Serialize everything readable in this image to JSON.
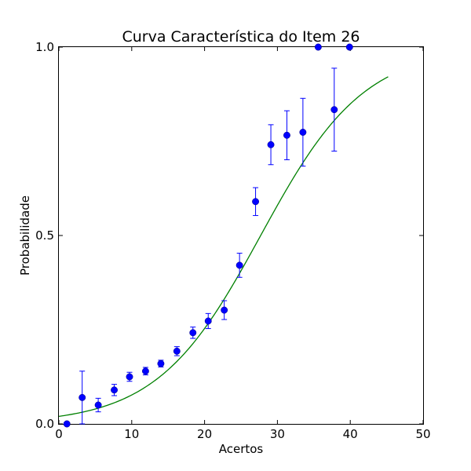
{
  "chart_data": {
    "type": "scatter",
    "title": "Curva Característica do Item 26",
    "xlabel": "Acertos",
    "ylabel": "Probabilidade",
    "xlim": [
      0,
      50
    ],
    "ylim": [
      0.0,
      1.0
    ],
    "x_ticks": [
      "0",
      "10",
      "20",
      "30",
      "40",
      "50"
    ],
    "y_ticks": [
      "0.0",
      "0.5",
      "1.0"
    ],
    "grid": false,
    "colors": {
      "points": "#0000ff",
      "curve": "#008000",
      "axes": "#000000"
    },
    "points": [
      {
        "x": 1.1,
        "y": 0.0,
        "yerr": 0.0
      },
      {
        "x": 3.2,
        "y": 0.07,
        "yerr": 0.07
      },
      {
        "x": 5.4,
        "y": 0.05,
        "yerr": 0.018
      },
      {
        "x": 7.6,
        "y": 0.09,
        "yerr": 0.015
      },
      {
        "x": 9.7,
        "y": 0.125,
        "yerr": 0.012
      },
      {
        "x": 11.9,
        "y": 0.14,
        "yerr": 0.01
      },
      {
        "x": 14.0,
        "y": 0.16,
        "yerr": 0.009
      },
      {
        "x": 16.2,
        "y": 0.193,
        "yerr": 0.012
      },
      {
        "x": 18.4,
        "y": 0.242,
        "yerr": 0.015
      },
      {
        "x": 20.5,
        "y": 0.273,
        "yerr": 0.02
      },
      {
        "x": 22.7,
        "y": 0.302,
        "yerr": 0.025
      },
      {
        "x": 24.8,
        "y": 0.421,
        "yerr": 0.032
      },
      {
        "x": 27.0,
        "y": 0.59,
        "yerr": 0.037
      },
      {
        "x": 29.1,
        "y": 0.741,
        "yerr": 0.053
      },
      {
        "x": 31.3,
        "y": 0.766,
        "yerr": 0.065
      },
      {
        "x": 33.5,
        "y": 0.774,
        "yerr": 0.09
      },
      {
        "x": 35.6,
        "y": 1.0,
        "yerr": 0.0
      },
      {
        "x": 37.8,
        "y": 0.834,
        "yerr": 0.11
      },
      {
        "x": 39.9,
        "y": 1.0,
        "yerr": 0.0
      }
    ],
    "curve": {
      "model": "logistic",
      "x_start": 0,
      "x_end": 45.2,
      "midpoint": 27.7,
      "slope": 0.1405
    }
  }
}
